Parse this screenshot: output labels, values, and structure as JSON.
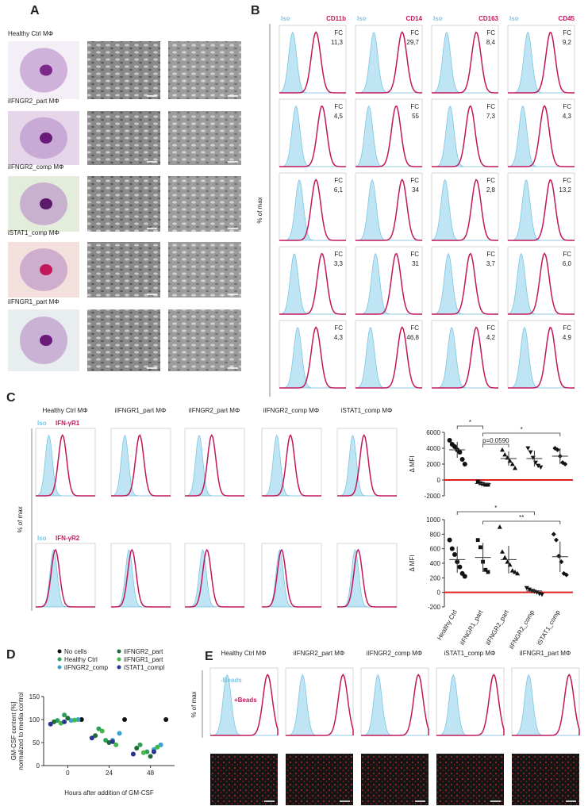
{
  "panelA": {
    "label": "A",
    "rows": [
      "Healthy Ctrl MΦ",
      "iIFNGR2_part MΦ",
      "iIFNGR2_comp MΦ",
      "iSTAT1_comp MΦ",
      "iIFNGR1_part MΦ"
    ]
  },
  "panelB": {
    "label": "B",
    "y_label": "% of max",
    "iso": "Iso",
    "markers": [
      "CD11b",
      "CD14",
      "CD163",
      "CD45"
    ],
    "fc_label": "FC",
    "fc": [
      [
        "11,3",
        "29,7",
        "8,4",
        "9,2"
      ],
      [
        "4,5",
        "55",
        "7,3",
        "4,3"
      ],
      [
        "6,1",
        "34",
        "2,8",
        "13,2"
      ],
      [
        "3,3",
        "31",
        "3,7",
        "6,0"
      ],
      [
        "4,3",
        "46,8",
        "4,2",
        "4,9"
      ]
    ]
  },
  "panelC": {
    "label": "C",
    "y_label": "% of max",
    "groups": [
      "Healthy Ctrl MΦ",
      "iIFNGR1_part MΦ",
      "iIFNGR2_part MΦ",
      "iIFNGR2_comp MΦ",
      "iSTAT1_comp MΦ"
    ],
    "iso": "Iso",
    "receptors": [
      "IFN-γR1",
      "IFN-γR2"
    ]
  },
  "panelD": {
    "label": "D"
  },
  "panelE": {
    "label": "E",
    "y_label": "% of max",
    "groups": [
      "Healthy Ctrl MΦ",
      "iIFNGR2_part MΦ",
      "iIFNGR2_comp MΦ",
      "iSTAT1_comp MΦ",
      "iIFNGR1_part MΦ"
    ],
    "minus": "-Beads",
    "plus": "+Beads"
  },
  "chart_data": [
    {
      "type": "dot",
      "y_label": "Δ MFI",
      "ylim": [
        -2000,
        6000
      ],
      "yticks": [
        -2000,
        0,
        2000,
        4000,
        6000
      ],
      "markers": [
        "circle",
        "square",
        "triangle",
        "triangle-down",
        "diamond"
      ],
      "ref_color": "#e02020",
      "groups": [
        [
          5000,
          4500,
          4200,
          3800,
          3500,
          2600,
          2000
        ],
        [
          -200,
          -400,
          -500,
          -600,
          -600
        ],
        [
          3800,
          3200,
          2800,
          2400,
          2000,
          1500
        ],
        [
          4000,
          3500,
          2800,
          2200,
          1800,
          1600
        ],
        [
          4000,
          3800,
          3000,
          2200,
          2000
        ]
      ],
      "means": [
        3800,
        -450,
        2700,
        2700,
        3000
      ],
      "sd": [
        1000,
        150,
        900,
        1000,
        1000
      ],
      "annotations": [
        "*",
        "p=0.0590",
        "*"
      ]
    },
    {
      "type": "dot",
      "y_label": "Δ MFI",
      "ylim": [
        -200,
        1000
      ],
      "yticks": [
        -200,
        0,
        200,
        400,
        600,
        800,
        1000
      ],
      "markers": [
        "circle",
        "square",
        "triangle",
        "triangle-down",
        "diamond"
      ],
      "ref_color": "#e02020",
      "categories": [
        "Healthy Ctrl",
        "iIFNGR1_part",
        "iIFNGR2_part",
        "iIFNGR2_comp",
        "iSTAT1_comp"
      ],
      "groups": [
        [
          720,
          600,
          520,
          420,
          350,
          260,
          220
        ],
        [
          720,
          620,
          420,
          310,
          280
        ],
        [
          900,
          560,
          480,
          420,
          380,
          300,
          280,
          260
        ],
        [
          60,
          40,
          20,
          10,
          0,
          -20,
          -30
        ],
        [
          800,
          720,
          500,
          420,
          260,
          240
        ]
      ],
      "means": [
        450,
        480,
        450,
        20,
        490
      ],
      "sd": [
        180,
        200,
        190,
        30,
        210
      ],
      "annotations": [
        "*",
        "**"
      ]
    },
    {
      "type": "scatter",
      "y_label": "GM-CSF content [%]",
      "y_sublabel": "normalized to media control",
      "x_label": "Hours after addition of GM-CSF",
      "xlim": [
        -14,
        62
      ],
      "ylim": [
        0,
        150
      ],
      "xticks": [
        0,
        24,
        48
      ],
      "yticks": [
        0,
        50,
        100,
        150
      ],
      "series": [
        {
          "name": "No cells",
          "color": "#111111",
          "x": [
            8,
            33,
            57
          ],
          "y": [
            100,
            100,
            100
          ]
        },
        {
          "name": "Healthy Ctrl",
          "color": "#2e9e5b",
          "x": [
            -6,
            -2,
            18,
            22,
            42,
            46
          ],
          "y": [
            98,
            110,
            80,
            55,
            45,
            30
          ]
        },
        {
          "name": "iIFNGR2_comp",
          "color": "#3aa3cc",
          "x": [
            2,
            6,
            26,
            30,
            50,
            54
          ],
          "y": [
            98,
            100,
            55,
            70,
            35,
            45
          ]
        },
        {
          "name": "iIFNGR2_part",
          "color": "#1e6b3a",
          "x": [
            -8,
            0,
            16,
            24,
            40,
            48
          ],
          "y": [
            95,
            103,
            65,
            50,
            38,
            20
          ]
        },
        {
          "name": "iIFNGR1_part",
          "color": "#45b649",
          "x": [
            -4,
            4,
            20,
            28,
            44,
            52
          ],
          "y": [
            92,
            99,
            75,
            45,
            28,
            40
          ]
        },
        {
          "name": "iSTAT1_compl",
          "color": "#283593",
          "x": [
            -10,
            -2,
            14,
            26,
            38,
            50
          ],
          "y": [
            90,
            95,
            60,
            52,
            25,
            30
          ]
        }
      ]
    }
  ]
}
